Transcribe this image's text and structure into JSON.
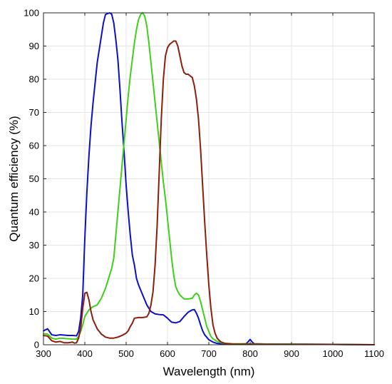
{
  "chart_data": {
    "type": "line",
    "title": "",
    "xlabel": "Wavelength (nm)",
    "ylabel": "Quantum efficiency (%)",
    "xlim": [
      300,
      1100
    ],
    "ylim": [
      0,
      100
    ],
    "x_ticks": [
      300,
      400,
      500,
      600,
      700,
      800,
      900,
      1000,
      1100
    ],
    "y_ticks": [
      0,
      10,
      20,
      30,
      40,
      50,
      60,
      70,
      80,
      90,
      100
    ],
    "grid": true,
    "legend": "none",
    "series": [
      {
        "color": "#0a10c8",
        "points": [
          [
            300,
            4.2
          ],
          [
            310,
            4.8
          ],
          [
            320,
            3.0
          ],
          [
            330,
            2.8
          ],
          [
            340,
            3.0
          ],
          [
            350,
            2.9
          ],
          [
            360,
            2.8
          ],
          [
            370,
            2.8
          ],
          [
            380,
            2.7
          ],
          [
            385,
            4.0
          ],
          [
            390,
            8.0
          ],
          [
            395,
            15.0
          ],
          [
            400,
            32.0
          ],
          [
            405,
            46.0
          ],
          [
            410,
            57.0
          ],
          [
            415,
            66.0
          ],
          [
            420,
            73.0
          ],
          [
            425,
            79.0
          ],
          [
            430,
            85.0
          ],
          [
            435,
            89.0
          ],
          [
            440,
            93.0
          ],
          [
            445,
            97.0
          ],
          [
            450,
            99.5
          ],
          [
            460,
            100.0
          ],
          [
            465,
            99.6
          ],
          [
            470,
            97.0
          ],
          [
            475,
            92.0
          ],
          [
            480,
            86.0
          ],
          [
            485,
            77.0
          ],
          [
            490,
            67.0
          ],
          [
            495,
            58.0
          ],
          [
            500,
            48.0
          ],
          [
            505,
            40.0
          ],
          [
            510,
            33.0
          ],
          [
            515,
            27.0
          ],
          [
            520,
            24.0
          ],
          [
            525,
            20.0
          ],
          [
            530,
            18.0
          ],
          [
            540,
            15.0
          ],
          [
            550,
            12.0
          ],
          [
            560,
            10.0
          ],
          [
            570,
            9.3
          ],
          [
            580,
            9.1
          ],
          [
            590,
            9.0
          ],
          [
            600,
            8.0
          ],
          [
            610,
            6.8
          ],
          [
            620,
            6.6
          ],
          [
            630,
            7.0
          ],
          [
            640,
            8.5
          ],
          [
            650,
            9.8
          ],
          [
            660,
            10.5
          ],
          [
            665,
            10.6
          ],
          [
            670,
            9.5
          ],
          [
            675,
            8.0
          ],
          [
            680,
            6.0
          ],
          [
            685,
            4.2
          ],
          [
            690,
            3.0
          ],
          [
            700,
            1.5
          ],
          [
            710,
            0.8
          ],
          [
            720,
            0.4
          ],
          [
            740,
            0.2
          ],
          [
            760,
            0.2
          ],
          [
            780,
            0.2
          ],
          [
            790,
            0.3
          ],
          [
            795,
            0.9
          ],
          [
            800,
            1.6
          ],
          [
            805,
            0.8
          ],
          [
            810,
            0.3
          ],
          [
            850,
            0.2
          ],
          [
            900,
            0.2
          ],
          [
            1000,
            0.1
          ],
          [
            1100,
            0.0
          ]
        ]
      },
      {
        "color": "#3fcf1a",
        "points": [
          [
            300,
            3.3
          ],
          [
            310,
            3.2
          ],
          [
            320,
            2.0
          ],
          [
            330,
            1.7
          ],
          [
            340,
            2.0
          ],
          [
            350,
            1.9
          ],
          [
            360,
            1.8
          ],
          [
            370,
            1.7
          ],
          [
            380,
            1.7
          ],
          [
            385,
            2.5
          ],
          [
            390,
            4.0
          ],
          [
            395,
            6.0
          ],
          [
            400,
            8.5
          ],
          [
            405,
            9.5
          ],
          [
            410,
            10.5
          ],
          [
            420,
            11.5
          ],
          [
            430,
            12.0
          ],
          [
            440,
            14.0
          ],
          [
            450,
            17.0
          ],
          [
            455,
            19.0
          ],
          [
            460,
            21.0
          ],
          [
            465,
            23.0
          ],
          [
            470,
            26.0
          ],
          [
            475,
            33.0
          ],
          [
            480,
            40.0
          ],
          [
            485,
            47.0
          ],
          [
            490,
            54.0
          ],
          [
            495,
            61.0
          ],
          [
            500,
            68.0
          ],
          [
            505,
            75.0
          ],
          [
            510,
            81.0
          ],
          [
            515,
            86.0
          ],
          [
            520,
            91.0
          ],
          [
            525,
            95.0
          ],
          [
            530,
            98.0
          ],
          [
            535,
            99.5
          ],
          [
            540,
            100.0
          ],
          [
            545,
            99.0
          ],
          [
            550,
            96.0
          ],
          [
            555,
            91.0
          ],
          [
            560,
            85.0
          ],
          [
            565,
            79.0
          ],
          [
            570,
            73.0
          ],
          [
            575,
            67.0
          ],
          [
            580,
            61.0
          ],
          [
            585,
            55.0
          ],
          [
            590,
            49.0
          ],
          [
            595,
            44.0
          ],
          [
            600,
            38.0
          ],
          [
            605,
            32.0
          ],
          [
            610,
            26.0
          ],
          [
            615,
            21.0
          ],
          [
            620,
            17.5
          ],
          [
            625,
            16.0
          ],
          [
            630,
            15.0
          ],
          [
            640,
            13.8
          ],
          [
            650,
            13.8
          ],
          [
            660,
            14.0
          ],
          [
            665,
            15.0
          ],
          [
            670,
            15.5
          ],
          [
            675,
            15.0
          ],
          [
            680,
            13.0
          ],
          [
            685,
            10.5
          ],
          [
            690,
            8.0
          ],
          [
            695,
            5.5
          ],
          [
            700,
            4.0
          ],
          [
            705,
            2.5
          ],
          [
            710,
            1.8
          ],
          [
            720,
            1.0
          ],
          [
            730,
            0.6
          ],
          [
            740,
            0.4
          ],
          [
            760,
            0.3
          ],
          [
            780,
            0.3
          ],
          [
            800,
            0.3
          ],
          [
            850,
            0.2
          ],
          [
            900,
            0.2
          ],
          [
            1000,
            0.1
          ],
          [
            1100,
            0.0
          ]
        ]
      },
      {
        "color": "#8c1e0c",
        "points": [
          [
            300,
            2.8
          ],
          [
            310,
            2.6
          ],
          [
            320,
            1.2
          ],
          [
            330,
            0.8
          ],
          [
            340,
            1.0
          ],
          [
            350,
            0.6
          ],
          [
            360,
            0.6
          ],
          [
            370,
            0.8
          ],
          [
            375,
            0.5
          ],
          [
            380,
            0.6
          ],
          [
            385,
            2.0
          ],
          [
            390,
            5.0
          ],
          [
            395,
            11.0
          ],
          [
            400,
            15.5
          ],
          [
            405,
            15.8
          ],
          [
            410,
            13.5
          ],
          [
            415,
            10.0
          ],
          [
            420,
            7.5
          ],
          [
            430,
            4.8
          ],
          [
            440,
            3.2
          ],
          [
            450,
            2.3
          ],
          [
            460,
            2.0
          ],
          [
            470,
            2.0
          ],
          [
            480,
            2.3
          ],
          [
            490,
            2.8
          ],
          [
            500,
            3.5
          ],
          [
            505,
            4.2
          ],
          [
            510,
            5.5
          ],
          [
            515,
            6.5
          ],
          [
            520,
            8.0
          ],
          [
            530,
            8.2
          ],
          [
            540,
            8.2
          ],
          [
            550,
            8.4
          ],
          [
            555,
            9.5
          ],
          [
            560,
            12.0
          ],
          [
            565,
            16.0
          ],
          [
            570,
            24.0
          ],
          [
            575,
            36.0
          ],
          [
            580,
            52.0
          ],
          [
            585,
            68.0
          ],
          [
            590,
            80.0
          ],
          [
            595,
            87.0
          ],
          [
            600,
            89.5
          ],
          [
            605,
            90.5
          ],
          [
            610,
            91.0
          ],
          [
            615,
            91.5
          ],
          [
            620,
            91.5
          ],
          [
            625,
            90.0
          ],
          [
            630,
            87.0
          ],
          [
            635,
            84.0
          ],
          [
            640,
            82.0
          ],
          [
            645,
            81.5
          ],
          [
            650,
            81.5
          ],
          [
            655,
            81.0
          ],
          [
            660,
            80.5
          ],
          [
            665,
            78.0
          ],
          [
            670,
            74.0
          ],
          [
            675,
            68.0
          ],
          [
            680,
            59.0
          ],
          [
            685,
            48.0
          ],
          [
            690,
            37.0
          ],
          [
            695,
            27.0
          ],
          [
            700,
            18.0
          ],
          [
            705,
            11.0
          ],
          [
            710,
            6.0
          ],
          [
            715,
            3.5
          ],
          [
            720,
            2.0
          ],
          [
            725,
            1.3
          ],
          [
            730,
            0.8
          ],
          [
            740,
            0.4
          ],
          [
            760,
            0.2
          ],
          [
            800,
            0.2
          ],
          [
            900,
            0.1
          ],
          [
            1000,
            0.1
          ],
          [
            1100,
            0.0
          ]
        ]
      }
    ]
  }
}
